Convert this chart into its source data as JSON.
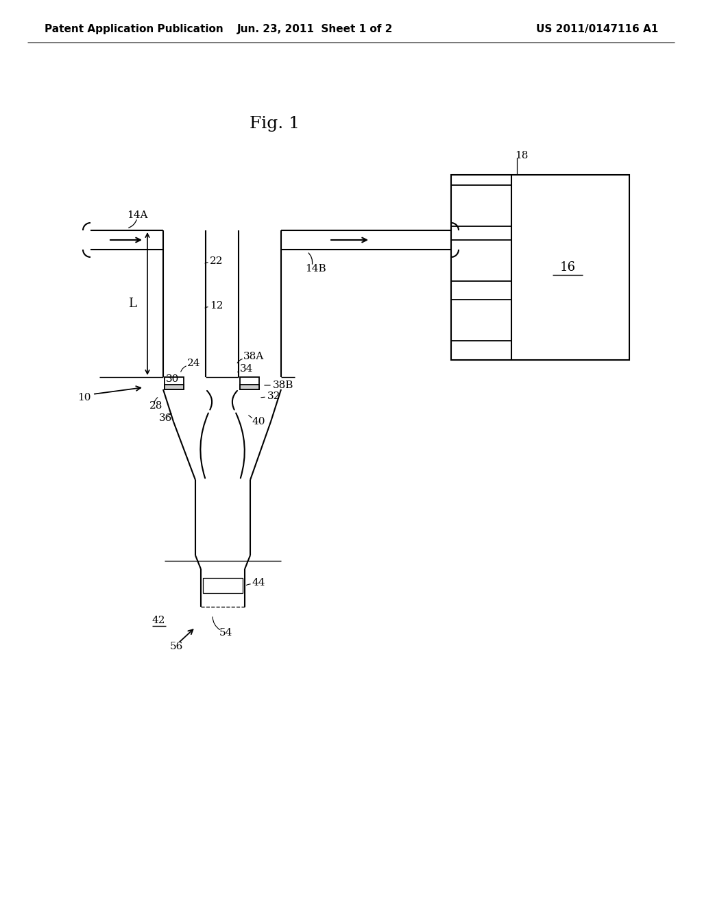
{
  "title": "Fig. 1",
  "header_left": "Patent Application Publication",
  "header_center": "Jun. 23, 2011  Sheet 1 of 2",
  "header_right": "US 2011/0147116 A1",
  "bg_color": "#ffffff",
  "line_color": "#000000",
  "font_size_header": 11,
  "font_size_title": 18,
  "font_size_label": 11
}
